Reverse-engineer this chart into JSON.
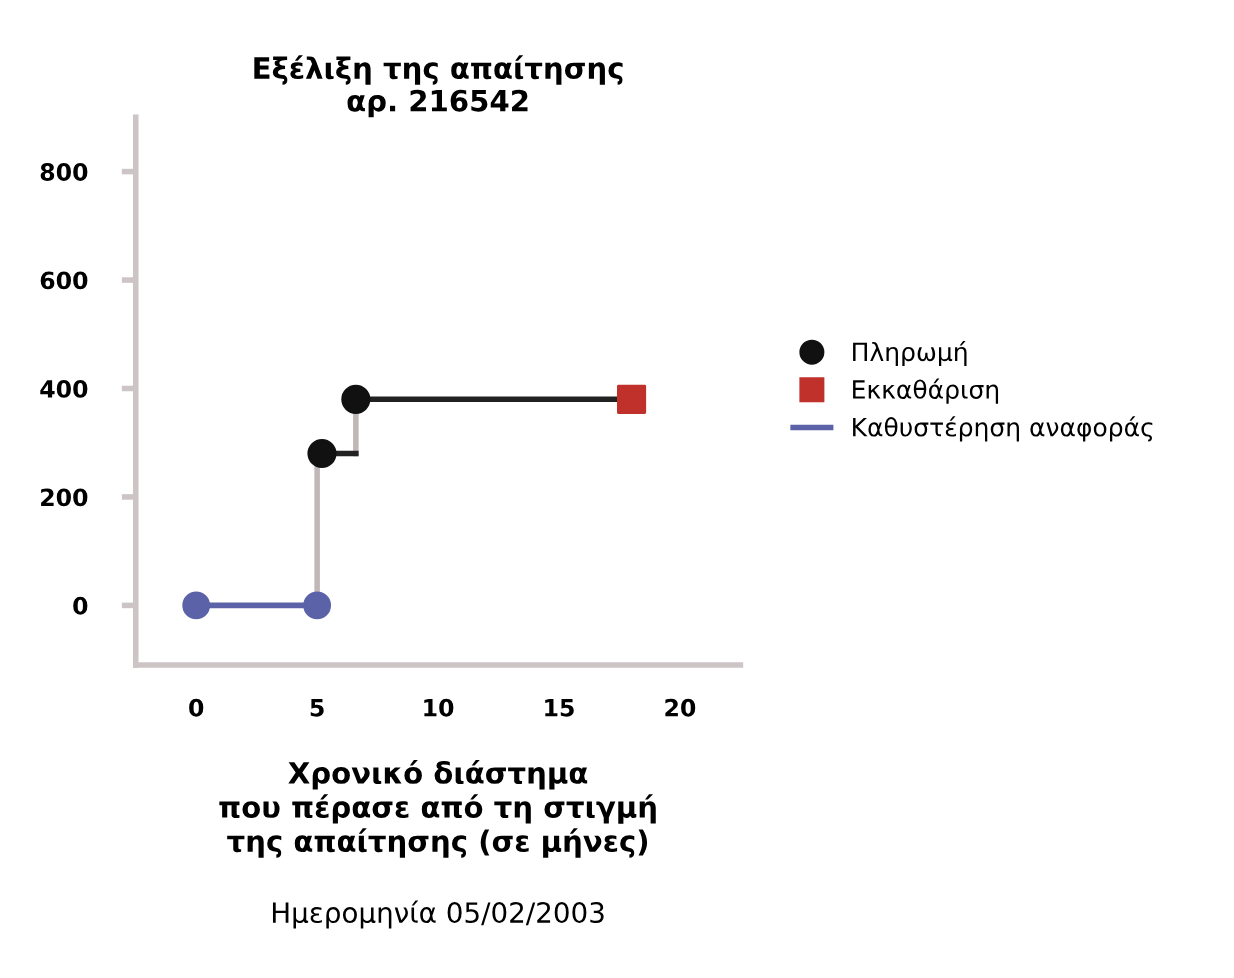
{
  "chart_data": {
    "type": "line",
    "title": "Εξέλιξη της απαίτησης\nαρ. 216542",
    "xlabel": "Χρονικό διάστημα\nπου πέρασε από τη στιγμή\nτης απαίτησης (σε μήνες)",
    "annotations": [
      "Ημερομηνία 05/02/2003"
    ],
    "series": [
      {
        "type": "scatter",
        "name": "Πληρωμή",
        "color": "#111111",
        "x": [
          5.2,
          6.6
        ],
        "values": [
          280,
          380
        ],
        "marker": "circle"
      },
      {
        "type": "scatter",
        "name": "Εκκαθάριση",
        "color": "#c0312b",
        "x": [
          18
        ],
        "values": [
          380
        ],
        "marker": "square"
      },
      {
        "name": "Καθυστέρηση αναφοράς",
        "color": "#5b62a8",
        "x": [
          0,
          5
        ],
        "values": [
          0,
          0
        ],
        "marker": "circle"
      },
      {
        "color": "#c0b8b8",
        "x": [
          5,
          5
        ],
        "values": [
          0,
          280
        ],
        "marker": "none"
      },
      {
        "color": "#c0b8b8",
        "x": [
          6.6,
          6.6
        ],
        "values": [
          280,
          380
        ],
        "marker": "none"
      },
      {
        "color": "#222222",
        "x": [
          5.2,
          6.6
        ],
        "values": [
          280,
          280
        ],
        "marker": "none"
      },
      {
        "color": "#222222",
        "x": [
          6.6,
          18
        ],
        "values": [
          380,
          380
        ],
        "marker": "none"
      }
    ],
    "xlim": [
      -2.5,
      22.5
    ],
    "ylim": [
      -110,
      900
    ],
    "xticks": [
      0,
      5,
      10,
      15,
      20
    ],
    "yticks": [
      0,
      200,
      400,
      600,
      800
    ],
    "grid": false,
    "legend": "right"
  }
}
